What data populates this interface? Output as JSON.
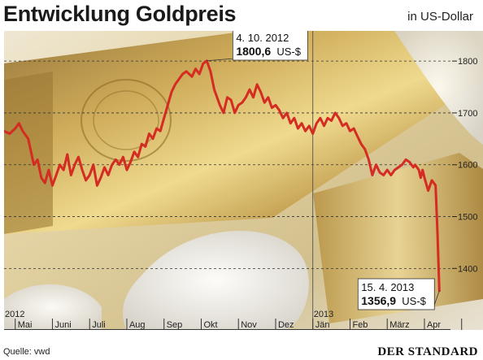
{
  "header": {
    "title": "Entwicklung Goldpreis",
    "unit": "in US-Dollar"
  },
  "footer": {
    "source": "Quelle: vwd",
    "publisher": "DER STANDARD"
  },
  "colors": {
    "line": "#d42b22",
    "background_photo": "#c9a34a",
    "grid": "#333333"
  },
  "chart_data": {
    "type": "line",
    "title": "Entwicklung Goldpreis",
    "ylabel": "in US-Dollar",
    "xlabel": "",
    "ylim": [
      1330,
      1830
    ],
    "yticks": [
      1400,
      1500,
      1600,
      1700,
      1800
    ],
    "ytick_labels": [
      "1400",
      "1500",
      "1600",
      "1700",
      "1800"
    ],
    "grid": "horizontal dashed",
    "year_labels": [
      {
        "label": "2012",
        "month_index": 0
      },
      {
        "label": "2013",
        "month_index": 8
      }
    ],
    "month_labels": [
      "Mai",
      "Juni",
      "Juli",
      "Aug",
      "Sep",
      "Okt",
      "Nov",
      "Dez",
      "Jän",
      "Feb",
      "März",
      "Apr"
    ],
    "month_index_range": [
      -0.3,
      11.7
    ],
    "series": [
      {
        "name": "",
        "x": [
          -0.3,
          -0.15,
          0.0,
          0.1,
          0.2,
          0.35,
          0.5,
          0.6,
          0.7,
          0.8,
          0.9,
          1.0,
          1.1,
          1.2,
          1.3,
          1.4,
          1.5,
          1.6,
          1.7,
          1.8,
          1.9,
          2.0,
          2.1,
          2.2,
          2.3,
          2.4,
          2.5,
          2.6,
          2.7,
          2.8,
          2.9,
          3.0,
          3.1,
          3.2,
          3.3,
          3.4,
          3.5,
          3.6,
          3.7,
          3.8,
          3.9,
          4.0,
          4.1,
          4.2,
          4.3,
          4.4,
          4.5,
          4.6,
          4.75,
          4.85,
          4.95,
          5.05,
          5.15,
          5.25,
          5.35,
          5.5,
          5.6,
          5.7,
          5.8,
          5.9,
          6.0,
          6.1,
          6.2,
          6.3,
          6.4,
          6.5,
          6.6,
          6.7,
          6.8,
          6.9,
          7.0,
          7.1,
          7.2,
          7.3,
          7.4,
          7.5,
          7.6,
          7.7,
          7.8,
          7.9,
          8.0,
          8.1,
          8.2,
          8.3,
          8.4,
          8.5,
          8.6,
          8.7,
          8.8,
          8.9,
          9.0,
          9.1,
          9.2,
          9.3,
          9.4,
          9.5,
          9.6,
          9.7,
          9.8,
          9.9,
          10.0,
          10.1,
          10.2,
          10.3,
          10.4,
          10.5,
          10.6,
          10.7,
          10.75,
          10.85,
          10.9,
          10.95,
          11.0,
          11.1,
          11.2,
          11.3,
          11.35,
          11.4
        ],
        "values": [
          1665,
          1660,
          1670,
          1680,
          1665,
          1650,
          1600,
          1610,
          1575,
          1565,
          1590,
          1560,
          1580,
          1600,
          1590,
          1620,
          1580,
          1600,
          1615,
          1590,
          1570,
          1580,
          1600,
          1560,
          1575,
          1595,
          1580,
          1600,
          1610,
          1600,
          1615,
          1590,
          1605,
          1625,
          1615,
          1640,
          1635,
          1660,
          1650,
          1670,
          1665,
          1690,
          1715,
          1740,
          1755,
          1765,
          1775,
          1780,
          1770,
          1785,
          1775,
          1795,
          1800.6,
          1780,
          1745,
          1715,
          1700,
          1730,
          1725,
          1700,
          1715,
          1720,
          1730,
          1745,
          1730,
          1755,
          1740,
          1720,
          1730,
          1710,
          1715,
          1705,
          1690,
          1700,
          1680,
          1690,
          1670,
          1680,
          1665,
          1675,
          1660,
          1680,
          1690,
          1675,
          1690,
          1685,
          1700,
          1690,
          1675,
          1680,
          1665,
          1670,
          1655,
          1640,
          1630,
          1610,
          1580,
          1600,
          1585,
          1580,
          1590,
          1580,
          1590,
          1595,
          1600,
          1610,
          1605,
          1595,
          1600,
          1590,
          1575,
          1590,
          1575,
          1550,
          1570,
          1560,
          1470,
          1356.9
        ]
      }
    ],
    "annotations": [
      {
        "date": "4. 10. 2012",
        "value": "1800,6",
        "unit": "US-$",
        "x": 5.15,
        "y": 1800.6
      },
      {
        "date": "15. 4. 2013",
        "value": "1356,9",
        "unit": "US-$",
        "x": 11.4,
        "y": 1356.9
      }
    ]
  }
}
